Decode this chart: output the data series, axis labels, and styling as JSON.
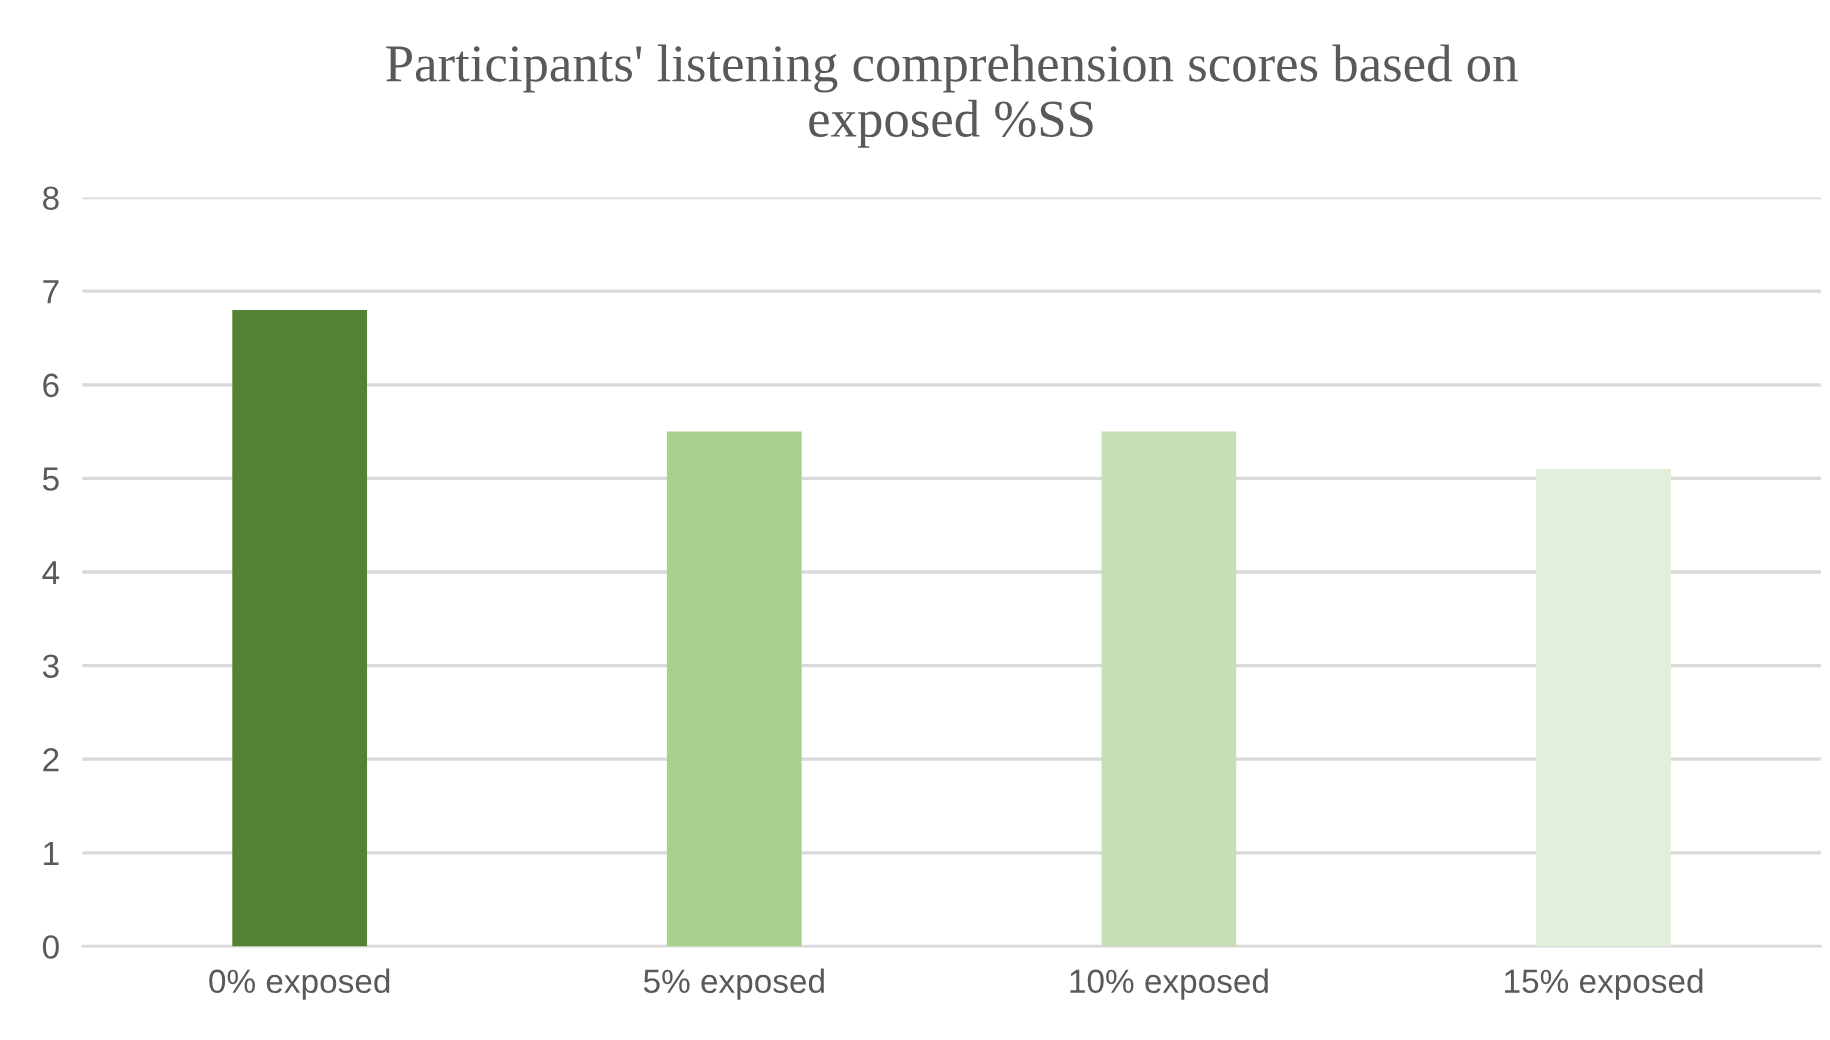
{
  "chart_data": {
    "type": "bar",
    "title": "Participants' listening comprehension scores based on\nexposed %SS",
    "categories": [
      "0% exposed",
      "5% exposed",
      "10% exposed",
      "15% exposed"
    ],
    "values": [
      6.8,
      5.5,
      5.5,
      5.1
    ],
    "colors": [
      "#548235",
      "#a9d18e",
      "#c5e0b4",
      "#e2efda"
    ],
    "ylim": [
      0,
      8
    ],
    "yticks": [
      0,
      1,
      2,
      3,
      4,
      5,
      6,
      7,
      8
    ],
    "grid": "y",
    "legend": false
  }
}
